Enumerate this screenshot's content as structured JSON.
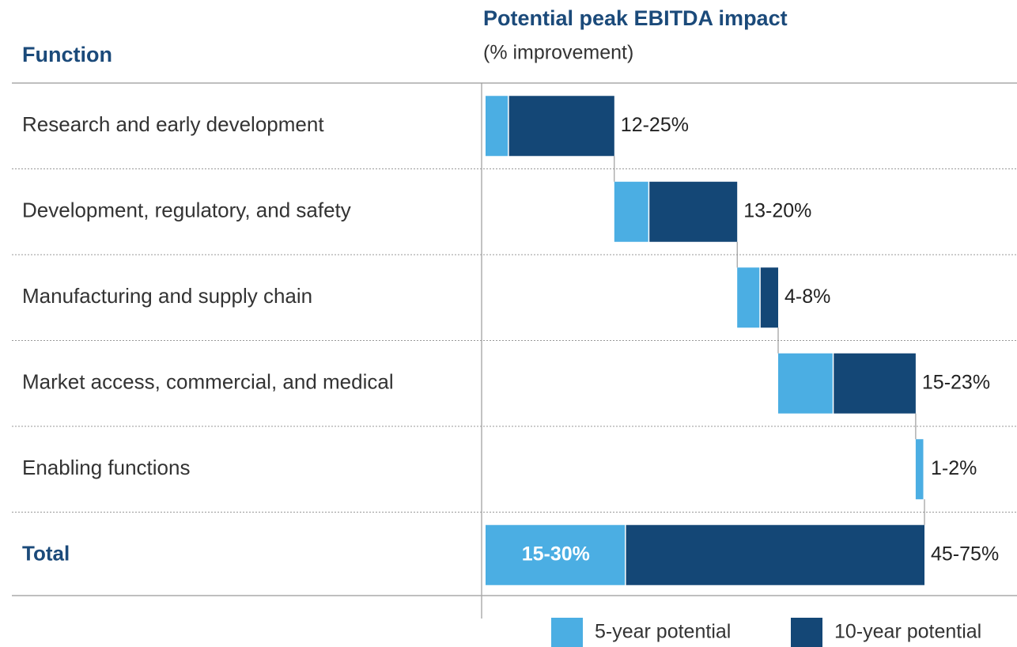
{
  "header": {
    "column_title": "Function"
  },
  "chart_data": {
    "type": "waterfall",
    "title": "Potential peak EBITDA impact",
    "subtitle": "(% improvement)",
    "categories": [
      "Research and early development",
      "Development, regulatory, and safety",
      "Manufacturing and supply chain",
      "Market access, commercial, and medical",
      "Enabling functions",
      "Total"
    ],
    "series": [
      {
        "name": "5-year potential",
        "color": "#4baee3",
        "values": [
          4,
          6,
          4,
          9.5,
          1.5,
          24
        ]
      },
      {
        "name": "10-year potential",
        "color": "#144776",
        "values": [
          18,
          15,
          3,
          14,
          null,
          51
        ]
      }
    ],
    "range_labels": [
      "12-25%",
      "13-20%",
      "4-8%",
      "15-23%",
      "1-2%",
      "45-75%"
    ],
    "total_inner_label": "15-30%",
    "xlim": [
      0,
      75
    ]
  }
}
